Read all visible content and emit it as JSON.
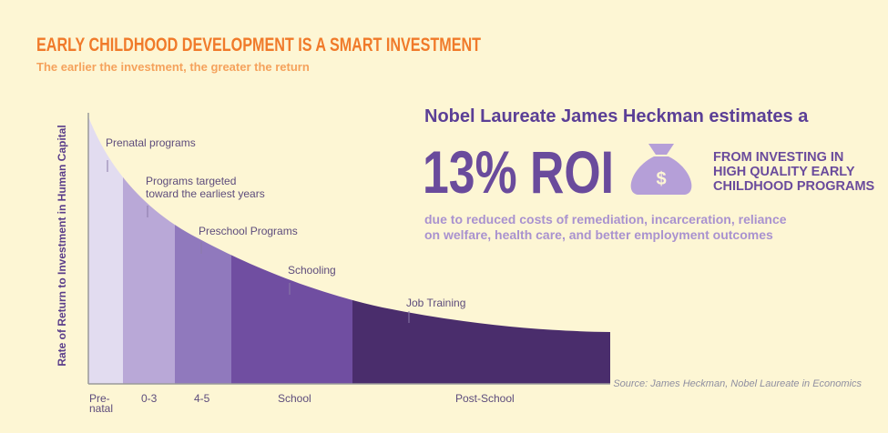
{
  "header": {
    "title": "EARLY CHILDHOOD DEVELOPMENT IS A SMART INVESTMENT",
    "subtitle": "The earlier the investment, the greater the return"
  },
  "graph": {
    "y_axis_label": "Rate of Return to Investment in Human Capital",
    "stages": [
      {
        "axis_label": [
          "Pre-",
          "natal"
        ],
        "annotation": [
          "Prenatal programs"
        ]
      },
      {
        "axis_label": [
          "0-3"
        ],
        "annotation": [
          "Programs targeted",
          "toward the earliest years"
        ]
      },
      {
        "axis_label": [
          "4-5"
        ],
        "annotation": [
          "Preschool Programs"
        ]
      },
      {
        "axis_label": [
          "School"
        ],
        "annotation": [
          "Schooling"
        ]
      },
      {
        "axis_label": [
          "Post-School"
        ],
        "annotation": [
          "Job Training"
        ]
      }
    ],
    "source": "Source: James Heckman, Nobel Laureate in Economics"
  },
  "callout": {
    "intro": "Nobel Laureate James Heckman estimates a",
    "headline": "13% ROI",
    "tagline": [
      "FROM INVESTING IN",
      "HIGH QUALITY EARLY",
      "CHILDHOOD PROGRAMS"
    ],
    "details": [
      "due to reduced costs of remediation, incarceration, reliance",
      "on welfare, health care, and better employment outcomes"
    ]
  }
}
